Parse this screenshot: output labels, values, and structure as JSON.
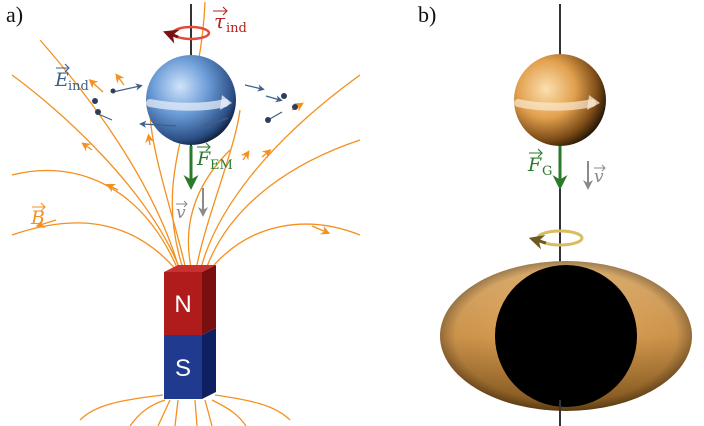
{
  "panel_a": {
    "label": "a)",
    "torque_symbol": "τ",
    "torque_sub": "ind",
    "efield_symbol": "E",
    "efield_sub": "ind",
    "force_symbol": "F",
    "force_sub": "EM",
    "velocity_symbol": "v",
    "bfield_symbol": "B",
    "magnet_north": "N",
    "magnet_south": "S"
  },
  "panel_b": {
    "label": "b)",
    "force_symbol": "F",
    "force_sub": "G",
    "velocity_symbol": "v"
  },
  "colors": {
    "field_lines": "#f5901e",
    "torque": "#b3231d",
    "efield": "#3f5f86",
    "force": "#2a7a2a",
    "velocity": "#8a8a8a",
    "magnet_red": "#b01c1c",
    "magnet_blue": "#1f3a8e",
    "planet_blue": "#6a9bd6",
    "planet_orange": "#e2a04d",
    "ring_gold": "#c9a64a"
  }
}
